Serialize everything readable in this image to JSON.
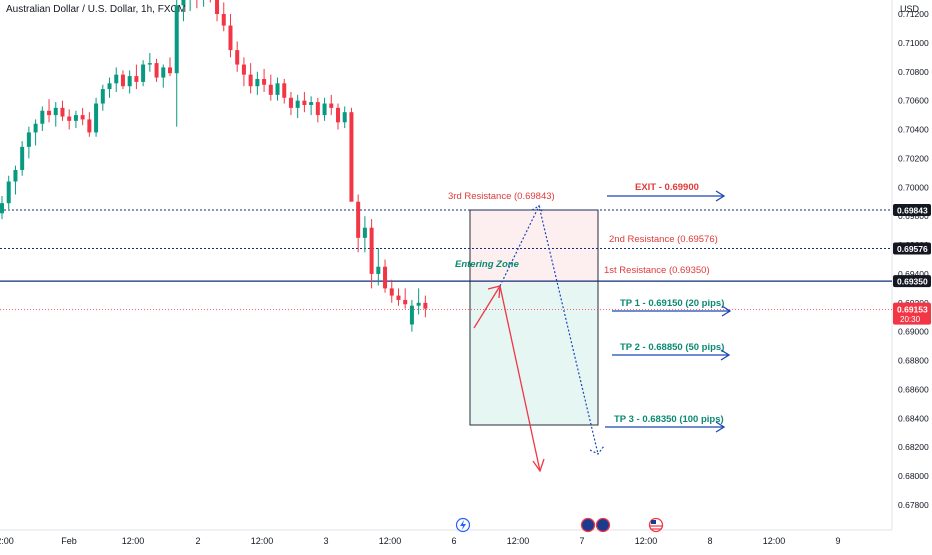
{
  "header": {
    "title": "Australian Dollar / U.S. Dollar, 1h, FXCM"
  },
  "price_axis": {
    "currency": "USD",
    "ticks": [
      "0.71200",
      "0.71000",
      "0.70800",
      "0.70600",
      "0.70400",
      "0.70200",
      "0.70000",
      "0.69800",
      "0.69600",
      "0.69400",
      "0.69200",
      "0.69000",
      "0.68800",
      "0.68600",
      "0.68400",
      "0.68200",
      "0.68000",
      "0.67800"
    ],
    "tick_values": [
      0.712,
      0.71,
      0.708,
      0.706,
      0.704,
      0.702,
      0.7,
      0.698,
      0.696,
      0.694,
      0.692,
      0.69,
      0.688,
      0.686,
      0.684,
      0.682,
      0.68,
      0.678
    ],
    "badges": [
      {
        "label": "0.69843",
        "value": 0.69843,
        "color": "#131722",
        "line": "dotted"
      },
      {
        "label": "0.69576",
        "value": 0.69576,
        "color": "#131722",
        "line": "dotted"
      },
      {
        "label": "0.69350",
        "value": 0.6935,
        "color": "#131722",
        "line": "solid"
      }
    ],
    "last_price": {
      "label": "0.69153",
      "countdown": "20:30",
      "value": 0.69153,
      "color": "#f23645"
    }
  },
  "time_axis": {
    "labels": [
      "2:00",
      "Feb",
      "12:00",
      "2",
      "12:00",
      "3",
      "12:00",
      "6",
      "12:00",
      "7",
      "12:00",
      "8",
      "12:00",
      "9"
    ]
  },
  "annotations": {
    "resistance_3": "3rd Resistance (0.69843)",
    "resistance_2": "2nd Resistance (0.69576)",
    "resistance_1": "1st Resistance (0.69350)",
    "entering_zone": "Entering Zone",
    "exit": "EXIT - 0.69900",
    "tp1": "TP 1 - 0.69150 (20 pips)",
    "tp2": "TP 2 - 0.68850 (50 pips)",
    "tp3": "TP 3 - 0.68350 (100 pips)"
  },
  "colors": {
    "up": "#089981",
    "down": "#f23645",
    "level": "#0d2f7a",
    "arrow": "#1a48b5",
    "red_text": "#e03a3a",
    "teal_text": "#0a8a72",
    "navy_text": "#0d2f7a",
    "zone_pink": "#fdeef0",
    "zone_teal": "#e6f6f3"
  },
  "chart_data": {
    "type": "candlestick",
    "title": "Australian Dollar / U.S. Dollar, 1h, FXCM",
    "series": [
      {
        "name": "AUD/USD",
        "values": [
          [
            0.6982,
            0.6994,
            0.6978,
            0.6989
          ],
          [
            0.6989,
            0.7008,
            0.6985,
            0.7004
          ],
          [
            0.7004,
            0.7015,
            0.6995,
            0.7012
          ],
          [
            0.7012,
            0.7032,
            0.7008,
            0.7028
          ],
          [
            0.7028,
            0.7042,
            0.702,
            0.7038
          ],
          [
            0.7038,
            0.7047,
            0.7029,
            0.7044
          ],
          [
            0.7044,
            0.7056,
            0.7039,
            0.7053
          ],
          [
            0.7053,
            0.7061,
            0.7045,
            0.705
          ],
          [
            0.705,
            0.7059,
            0.7042,
            0.7055
          ],
          [
            0.7055,
            0.706,
            0.7046,
            0.7049
          ],
          [
            0.7049,
            0.7054,
            0.704,
            0.7046
          ],
          [
            0.7046,
            0.7053,
            0.7041,
            0.705
          ],
          [
            0.705,
            0.7055,
            0.7043,
            0.7047
          ],
          [
            0.7047,
            0.7052,
            0.7035,
            0.7038
          ],
          [
            0.7038,
            0.7062,
            0.7035,
            0.7058
          ],
          [
            0.7058,
            0.7071,
            0.7053,
            0.7068
          ],
          [
            0.7068,
            0.7076,
            0.7062,
            0.7072
          ],
          [
            0.7072,
            0.7083,
            0.7066,
            0.7078
          ],
          [
            0.7078,
            0.7081,
            0.7068,
            0.707
          ],
          [
            0.707,
            0.7081,
            0.7065,
            0.7077
          ],
          [
            0.7077,
            0.7085,
            0.7068,
            0.7073
          ],
          [
            0.7073,
            0.7088,
            0.707,
            0.7085
          ],
          [
            0.7085,
            0.7093,
            0.708,
            0.7086
          ],
          [
            0.7086,
            0.7089,
            0.7073,
            0.7076
          ],
          [
            0.7076,
            0.7085,
            0.7069,
            0.7083
          ],
          [
            0.7083,
            0.709,
            0.7077,
            0.7079
          ],
          [
            0.7079,
            0.713,
            0.7042,
            0.7126
          ],
          [
            0.7126,
            0.7138,
            0.7115,
            0.7132
          ],
          [
            0.7132,
            0.714,
            0.7122,
            0.7136
          ],
          [
            0.7136,
            0.7142,
            0.7124,
            0.7131
          ],
          [
            0.7131,
            0.7141,
            0.7125,
            0.7138
          ],
          [
            0.7138,
            0.7142,
            0.7128,
            0.7131
          ],
          [
            0.7131,
            0.7137,
            0.7115,
            0.712
          ],
          [
            0.712,
            0.7128,
            0.7108,
            0.7112
          ],
          [
            0.7112,
            0.712,
            0.709,
            0.7095
          ],
          [
            0.7095,
            0.7101,
            0.708,
            0.7085
          ],
          [
            0.7085,
            0.709,
            0.707,
            0.7078
          ],
          [
            0.7078,
            0.7086,
            0.7065,
            0.707
          ],
          [
            0.707,
            0.708,
            0.7064,
            0.7075
          ],
          [
            0.7075,
            0.7082,
            0.7066,
            0.7071
          ],
          [
            0.7071,
            0.7078,
            0.706,
            0.7064
          ],
          [
            0.7064,
            0.7076,
            0.706,
            0.7072
          ],
          [
            0.7072,
            0.7075,
            0.7058,
            0.7062
          ],
          [
            0.7062,
            0.7066,
            0.705,
            0.7055
          ],
          [
            0.7055,
            0.7064,
            0.7048,
            0.706
          ],
          [
            0.706,
            0.7066,
            0.7052,
            0.7057
          ],
          [
            0.7057,
            0.7063,
            0.705,
            0.7059
          ],
          [
            0.7059,
            0.7062,
            0.7045,
            0.705
          ],
          [
            0.705,
            0.7062,
            0.7046,
            0.7058
          ],
          [
            0.7058,
            0.7064,
            0.705,
            0.7055
          ],
          [
            0.7055,
            0.7058,
            0.704,
            0.7045
          ],
          [
            0.7045,
            0.7056,
            0.7041,
            0.7052
          ],
          [
            0.7052,
            0.7055,
            0.703,
            0.699
          ],
          [
            0.699,
            0.6995,
            0.6955,
            0.6965
          ],
          [
            0.6965,
            0.698,
            0.6955,
            0.6972
          ],
          [
            0.6972,
            0.6978,
            0.693,
            0.694
          ],
          [
            0.694,
            0.6958,
            0.6932,
            0.6945
          ],
          [
            0.6945,
            0.695,
            0.6927,
            0.693
          ],
          [
            0.693,
            0.6936,
            0.692,
            0.6925
          ],
          [
            0.6925,
            0.693,
            0.6918,
            0.6922
          ],
          [
            0.6922,
            0.693,
            0.6916,
            0.6919
          ],
          [
            0.6905,
            0.6922,
            0.69,
            0.6918
          ],
          [
            0.6918,
            0.693,
            0.6912,
            0.692
          ],
          [
            0.692,
            0.6925,
            0.691,
            0.6916
          ]
        ]
      }
    ],
    "ylim": [
      0.6767,
      0.7142
    ],
    "levels": [
      0.69843,
      0.69576,
      0.6935
    ],
    "last": 0.69153,
    "legend": "none",
    "grid": false
  }
}
